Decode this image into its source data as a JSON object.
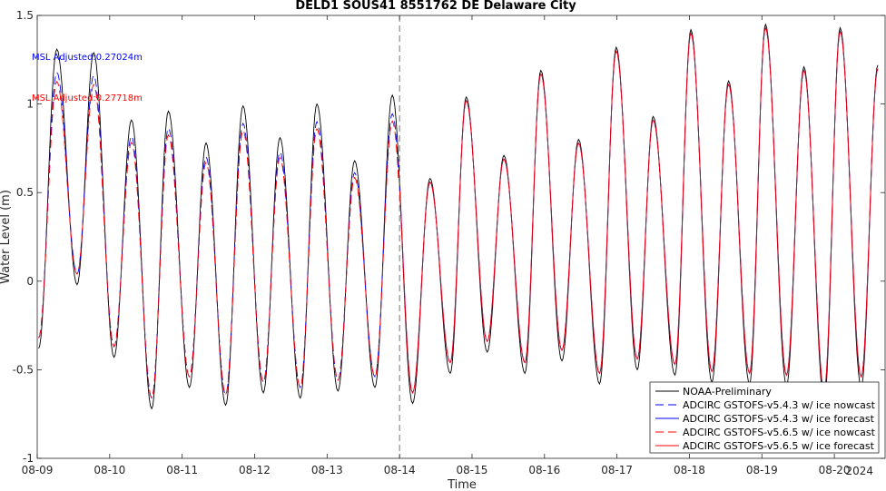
{
  "chart_data": {
    "type": "line",
    "title": "DELD1 SOUS41 8551762 DE Delaware City",
    "xlabel": "Time",
    "ylabel": "Water Level (m)",
    "year_label": "2024",
    "xlim": [
      0,
      11.7
    ],
    "ylim": [
      -1,
      1.5
    ],
    "x_ticks": [
      0,
      1,
      2,
      3,
      4,
      5,
      6,
      7,
      8,
      9,
      10,
      11
    ],
    "x_tick_labels": [
      "08-09",
      "08-10",
      "08-11",
      "08-12",
      "08-13",
      "08-14",
      "08-15",
      "08-16",
      "08-17",
      "08-18",
      "08-19",
      "08-20"
    ],
    "y_ticks": [
      -1,
      -0.5,
      0,
      0.5,
      1,
      1.5
    ],
    "y_tick_labels": [
      "-1",
      "-0.5",
      "0",
      "0.5",
      "1",
      "1.5"
    ],
    "forecast_start_x": 5,
    "annotations": [
      {
        "text": "MSL Adjusted:0.27024m",
        "color": "#0000ff",
        "x": 0.3,
        "y": 1.27
      },
      {
        "text": "MSL Adjusted:0.27718m",
        "color": "#ff0000",
        "x": 0.3,
        "y": 1.04
      }
    ],
    "high_tides": [
      [
        0.27,
        1.31
      ],
      [
        0.78,
        1.29
      ],
      [
        1.3,
        0.91
      ],
      [
        1.81,
        0.96
      ],
      [
        2.33,
        0.78
      ],
      [
        2.84,
        0.99
      ],
      [
        3.35,
        0.81
      ],
      [
        3.86,
        1.0
      ],
      [
        4.38,
        0.68
      ],
      [
        4.9,
        1.05
      ],
      [
        5.42,
        0.58
      ],
      [
        5.92,
        1.04
      ],
      [
        6.44,
        0.71
      ],
      [
        6.95,
        1.19
      ],
      [
        7.47,
        0.8
      ],
      [
        7.99,
        1.32
      ],
      [
        8.5,
        0.93
      ],
      [
        9.02,
        1.42
      ],
      [
        9.54,
        1.13
      ],
      [
        10.05,
        1.45
      ],
      [
        10.58,
        1.21
      ],
      [
        11.08,
        1.43
      ],
      [
        11.6,
        1.22
      ]
    ],
    "low_tides": [
      [
        0.02,
        -0.38
      ],
      [
        0.55,
        -0.02
      ],
      [
        1.06,
        -0.43
      ],
      [
        1.58,
        -0.72
      ],
      [
        2.1,
        -0.6
      ],
      [
        2.6,
        -0.7
      ],
      [
        3.12,
        -0.63
      ],
      [
        3.63,
        -0.66
      ],
      [
        4.15,
        -0.62
      ],
      [
        4.66,
        -0.6
      ],
      [
        5.18,
        -0.69
      ],
      [
        5.7,
        -0.52
      ],
      [
        6.21,
        -0.4
      ],
      [
        6.73,
        -0.52
      ],
      [
        7.24,
        -0.45
      ],
      [
        7.76,
        -0.58
      ],
      [
        8.28,
        -0.5
      ],
      [
        8.8,
        -0.53
      ],
      [
        9.31,
        -0.57
      ],
      [
        9.83,
        -0.58
      ],
      [
        10.34,
        -0.59
      ],
      [
        10.86,
        -0.68
      ],
      [
        11.37,
        -0.6
      ]
    ],
    "series": [
      {
        "name": "NOAA-Preliminary",
        "color": "#000000",
        "dash": "solid",
        "x_end": 11.7
      },
      {
        "name": "ADCIRC GSTOFS-v5.4.3 w/ ice nowcast",
        "color": "#0000ff",
        "dash": "dashed",
        "x_end": 5.0
      },
      {
        "name": "ADCIRC GSTOFS-v5.4.3 w/ ice forecast",
        "color": "#0000ff",
        "dash": "solid",
        "x_start": 5.0
      },
      {
        "name": "ADCIRC GSTOFS-v5.6.5 w/ ice nowcast",
        "color": "#ff0000",
        "dash": "dashed",
        "x_end": 5.0
      },
      {
        "name": "ADCIRC GSTOFS-v5.6.5 w/ ice forecast",
        "color": "#ff0000",
        "dash": "solid",
        "x_start": 5.0
      }
    ],
    "legend_position": "bottom-right",
    "grid": false
  }
}
